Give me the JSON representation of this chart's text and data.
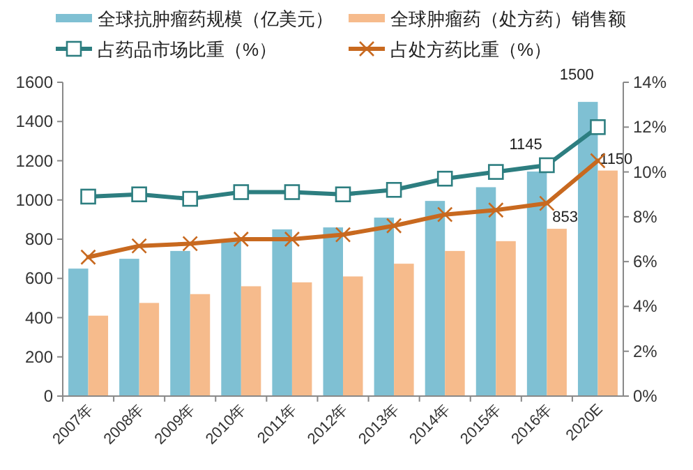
{
  "chart_data": {
    "type": "bar",
    "categories": [
      "2007年",
      "2008年",
      "2009年",
      "2010年",
      "2011年",
      "2012年",
      "2013年",
      "2014年",
      "2015年",
      "2016年",
      "2020E"
    ],
    "series": [
      {
        "name": "全球抗肿瘤药规模（亿美元）",
        "color": "#7fc0d3",
        "values": [
          650,
          700,
          740,
          790,
          850,
          860,
          910,
          995,
          1065,
          1145,
          1500
        ],
        "value_labels": [
          null,
          null,
          null,
          null,
          null,
          null,
          null,
          null,
          null,
          "1145",
          "1500"
        ]
      },
      {
        "name": "全球肿瘤药（处方药）销售额",
        "color": "#f6bb8c",
        "values": [
          410,
          475,
          520,
          560,
          580,
          610,
          675,
          740,
          790,
          853,
          1150
        ],
        "value_labels": [
          null,
          null,
          null,
          null,
          null,
          null,
          null,
          null,
          null,
          "853",
          "1150"
        ]
      },
      {
        "name": "占药品市场比重（%）",
        "type": "line",
        "axis": "y2",
        "marker": "square",
        "color": "#2d7e80",
        "values": [
          8.9,
          9.0,
          8.8,
          9.1,
          9.1,
          9.0,
          9.2,
          9.7,
          10.0,
          10.3,
          12.0
        ]
      },
      {
        "name": "占处方药比重（%）",
        "type": "line",
        "axis": "y2",
        "marker": "cross",
        "color": "#c8691f",
        "values": [
          6.2,
          6.7,
          6.8,
          7.0,
          7.0,
          7.2,
          7.6,
          8.1,
          8.3,
          8.6,
          10.5
        ]
      }
    ],
    "ylim": [
      0,
      1600
    ],
    "yticks": [
      0,
      200,
      400,
      600,
      800,
      1000,
      1200,
      1400,
      1600
    ],
    "y2lim": [
      0,
      14
    ],
    "y2ticks": [
      {
        "value": 0,
        "label": "0%"
      },
      {
        "value": 2,
        "label": "2%"
      },
      {
        "value": 4,
        "label": "4%"
      },
      {
        "value": 6,
        "label": "6%"
      },
      {
        "value": 8,
        "label": "8%"
      },
      {
        "value": 10,
        "label": "10%"
      },
      {
        "value": 12,
        "label": "12%"
      },
      {
        "value": 14,
        "label": "14%"
      }
    ],
    "grid": false,
    "legend": "top"
  }
}
